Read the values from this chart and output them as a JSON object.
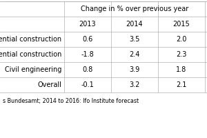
{
  "title_header": "Change in % over previous year",
  "col_headers": [
    "",
    "2013",
    "2014",
    "2015"
  ],
  "rows": [
    [
      "Residential construction",
      "0.6",
      "3.5",
      "2.0"
    ],
    [
      "Non-residential construction",
      "-1.8",
      "2.4",
      "2.3"
    ],
    [
      "Civil engineering",
      "0.8",
      "3.9",
      "1.8"
    ],
    [
      "Overall",
      "-0.1",
      "3.2",
      "2.1"
    ]
  ],
  "footnote": "s Bundesamt; 2014 to 2016: Ifo Institute forecast",
  "bg_color": "#ffffff",
  "line_color": "#b0b0b0",
  "text_color": "#000000",
  "font_size": 7.0,
  "footnote_size": 5.8,
  "fig_width": 3.0,
  "fig_height": 2.0,
  "dpi": 100
}
